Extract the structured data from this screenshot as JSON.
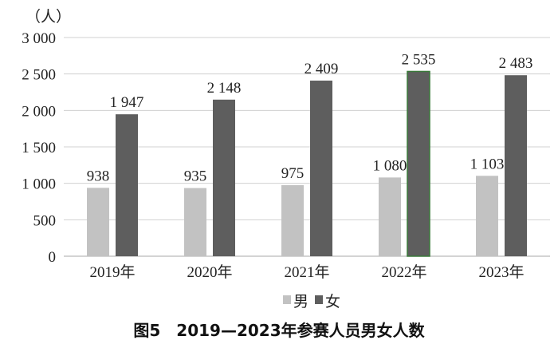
{
  "chart_data": {
    "type": "bar",
    "title": "图5　2019—2023年参赛人员男女人数",
    "ylabel": "（人）",
    "xlabel": "",
    "categories": [
      "2019年",
      "2020年",
      "2021年",
      "2022年",
      "2023年"
    ],
    "series": [
      {
        "name": "男",
        "values": [
          938,
          935,
          975,
          1080,
          1103
        ],
        "labels": [
          "938",
          "935",
          "975",
          "1 080",
          "1 103"
        ],
        "color": "#c2c2c2"
      },
      {
        "name": "女",
        "values": [
          1947,
          2148,
          2409,
          2535,
          2483
        ],
        "labels": [
          "1 947",
          "2 148",
          "2 409",
          "2 535",
          "2 483"
        ],
        "color": "#5e5e5e"
      }
    ],
    "ylim": [
      0,
      3000
    ],
    "yticks": [
      0,
      500,
      1000,
      1500,
      2000,
      2500,
      3000
    ],
    "ytick_labels": [
      "0",
      "500",
      "1 000",
      "1 500",
      "2 000",
      "2 500",
      "3 000"
    ],
    "grid": true,
    "legend_position": "bottom-center"
  },
  "colors": {
    "gridline": "#d0d0d0",
    "axis": "#aaaaaa",
    "highlight_edge": "#3a7a3a"
  }
}
